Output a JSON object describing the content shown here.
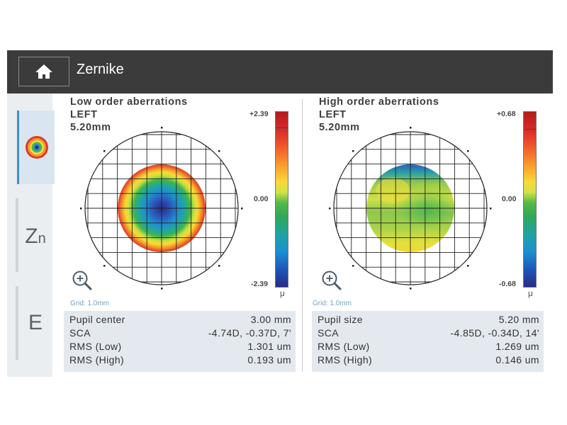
{
  "header": {
    "title": "Zernike",
    "home_icon": "home-icon"
  },
  "sidebar": {
    "tabs": [
      {
        "name": "map",
        "icon": "target-map-icon"
      },
      {
        "name": "zernike",
        "label_main": "Z",
        "label_sub": "n"
      },
      {
        "name": "e",
        "label_main": "E"
      }
    ]
  },
  "panels": [
    {
      "title": "Low order aberrations",
      "eye": "LEFT",
      "size": "5.20mm",
      "scale": {
        "max": "+2.39",
        "mid": "0.00",
        "min": "-2.39",
        "unit": "μ"
      },
      "grid_note": "Grid: 1.0mm",
      "info": [
        {
          "label": "Pupil center",
          "value": "3.00 mm"
        },
        {
          "label": "SCA",
          "value": "-4.74D, -0.37D, 7'"
        },
        {
          "label": "RMS (Low)",
          "value": "1.301 um"
        },
        {
          "label": "RMS (High)",
          "value": "0.193 um"
        }
      ]
    },
    {
      "title": "High order aberrations",
      "eye": "LEFT",
      "size": "5.20mm",
      "scale": {
        "max": "+0.68",
        "mid": "0.00",
        "min": "-0.68",
        "unit": "μ"
      },
      "grid_note": "Grid: 1.0mm",
      "info": [
        {
          "label": "Pupil size",
          "value": "5.20 mm"
        },
        {
          "label": "SCA",
          "value": "-4.85D, -0.34D, 14'"
        },
        {
          "label": "RMS (Low)",
          "value": "1.269 um"
        },
        {
          "label": "RMS (High)",
          "value": "0.146 um"
        }
      ]
    }
  ],
  "colors": {
    "header_bg": "#3b3b3b",
    "accent": "#3d8fd1",
    "info_bg": "#e3e9ee"
  }
}
